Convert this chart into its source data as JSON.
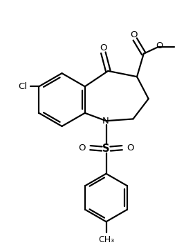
{
  "bg_color": "#ffffff",
  "line_color": "#000000",
  "line_width": 1.6,
  "font_size": 9.5,
  "fig_width": 2.82,
  "fig_height": 3.58,
  "dpi": 100,
  "xlim": [
    0,
    10
  ],
  "ylim": [
    0,
    12.72
  ]
}
